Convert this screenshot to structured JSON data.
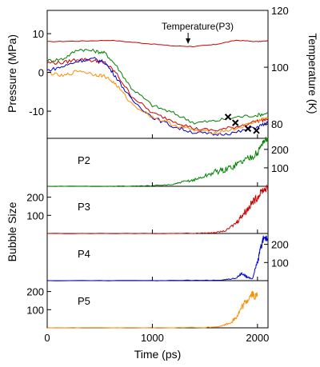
{
  "chart_data": [
    {
      "type": "line",
      "panel": "pressure-temperature",
      "xlabel": "Time (ps)",
      "ylabel": "Pressure (MPa)",
      "y2label": "Temperature (K)",
      "xlim": [
        0,
        2100
      ],
      "ylim": [
        -17,
        16
      ],
      "y2lim": [
        75,
        120
      ],
      "xticks": [
        0,
        1000,
        2000
      ],
      "yticks": [
        -10,
        0,
        10
      ],
      "y2ticks": [
        80,
        100,
        120
      ],
      "x_tick_labels": [
        "0",
        "1000",
        "2000"
      ],
      "ytick_labels": [
        "-10",
        "0",
        "10"
      ],
      "y2tick_labels": [
        "80",
        "100",
        "120"
      ],
      "annotation": "Temperature(P3)",
      "series": [
        {
          "name": "Temperature(P3)",
          "axis": "right",
          "color": "#cc0000",
          "x": [
            0,
            300,
            600,
            900,
            1200,
            1400,
            1600,
            1800,
            2000,
            2100
          ],
          "y": [
            109,
            109.2,
            109.5,
            108.5,
            107.5,
            107.3,
            108,
            109.5,
            109,
            109.3
          ]
        },
        {
          "name": "",
          "color": "#008000",
          "x": [
            0,
            150,
            300,
            450,
            550,
            650,
            800,
            1000,
            1200,
            1400,
            1600,
            1800,
            2000,
            2100
          ],
          "y": [
            3,
            3.5,
            6,
            5.5,
            5,
            2,
            -4,
            -8.5,
            -10.5,
            -13,
            -12.5,
            -11.5,
            -11,
            -10.5
          ]
        },
        {
          "name": "",
          "color": "#cc0000",
          "x": [
            0,
            150,
            300,
            450,
            550,
            650,
            800,
            1000,
            1200,
            1400,
            1600,
            1800,
            2000,
            2100
          ],
          "y": [
            2.5,
            2.5,
            3.5,
            3,
            2.5,
            0,
            -6,
            -10.5,
            -12.5,
            -14.5,
            -15,
            -14,
            -12.5,
            -12
          ]
        },
        {
          "name": "",
          "color": "#0000cc",
          "x": [
            0,
            150,
            300,
            450,
            550,
            650,
            800,
            1000,
            1200,
            1400,
            1600,
            1800,
            2000,
            2100
          ],
          "y": [
            0.5,
            1.5,
            3,
            3.5,
            2.5,
            -1,
            -7,
            -11.5,
            -14,
            -15.5,
            -16,
            -15.5,
            -14,
            -13
          ]
        },
        {
          "name": "",
          "color": "#ff8c00",
          "x": [
            0,
            150,
            300,
            450,
            550,
            650,
            800,
            1000,
            1200,
            1400,
            1600,
            1800,
            2000,
            2100
          ],
          "y": [
            0,
            -1,
            0.5,
            -0.5,
            -1,
            -3,
            -8,
            -11.5,
            -13.5,
            -15,
            -15.5,
            -14.5,
            -12.5,
            -11.5
          ]
        }
      ],
      "markers": {
        "symbol": "x",
        "x": [
          1720,
          1790,
          1910,
          1990
        ],
        "y": [
          -11.5,
          -13,
          -14.5,
          -15
        ]
      }
    },
    {
      "type": "line",
      "panel": "P2",
      "label": "P2",
      "color": "#008000",
      "ylabel": "Bubble Size",
      "xlim": [
        0,
        2100
      ],
      "ylim": [
        0,
        260
      ],
      "yticks": [
        100,
        200
      ],
      "ytick_labels": [
        "100",
        "200"
      ],
      "tick_side": "right",
      "x": [
        0,
        500,
        800,
        1000,
        1200,
        1300,
        1400,
        1500,
        1600,
        1700,
        1800,
        1900,
        2000,
        2050,
        2100
      ],
      "y": [
        0,
        0,
        1,
        3,
        10,
        25,
        35,
        55,
        80,
        90,
        120,
        150,
        180,
        240,
        260
      ]
    },
    {
      "type": "line",
      "panel": "P3",
      "label": "P3",
      "color": "#cc0000",
      "ylabel": "Bubble Size",
      "xlim": [
        0,
        2100
      ],
      "ylim": [
        0,
        260
      ],
      "yticks": [
        100,
        200
      ],
      "ytick_labels": [
        "100",
        "200"
      ],
      "tick_side": "left",
      "x": [
        0,
        1000,
        1400,
        1550,
        1600,
        1700,
        1800,
        1850,
        1900,
        1950,
        2000,
        2050,
        2100
      ],
      "y": [
        0,
        0,
        1,
        3,
        5,
        15,
        60,
        100,
        130,
        170,
        200,
        240,
        250
      ]
    },
    {
      "type": "line",
      "panel": "P4",
      "label": "P4",
      "color": "#0000cc",
      "ylabel": "Bubble Size",
      "xlim": [
        0,
        2100
      ],
      "ylim": [
        0,
        260
      ],
      "yticks": [
        100,
        200
      ],
      "ytick_labels": [
        "100",
        "200"
      ],
      "tick_side": "right",
      "x": [
        0,
        1000,
        1500,
        1700,
        1800,
        1850,
        1900,
        1950,
        2000,
        2030,
        2060,
        2100
      ],
      "y": [
        0,
        0,
        2,
        5,
        15,
        40,
        20,
        10,
        100,
        180,
        240,
        230
      ]
    },
    {
      "type": "line",
      "panel": "P5",
      "label": "P5",
      "color": "#ff8c00",
      "ylabel": "Bubble Size",
      "xlim": [
        0,
        2100
      ],
      "ylim": [
        0,
        260
      ],
      "yticks": [
        100,
        200
      ],
      "ytick_labels": [
        "100",
        "200"
      ],
      "tick_side": "left",
      "x": [
        0,
        1000,
        1500,
        1650,
        1750,
        1800,
        1850,
        1900,
        1950,
        1970,
        2000
      ],
      "y": [
        0,
        0,
        2,
        8,
        30,
        60,
        110,
        150,
        190,
        170,
        180
      ]
    }
  ]
}
